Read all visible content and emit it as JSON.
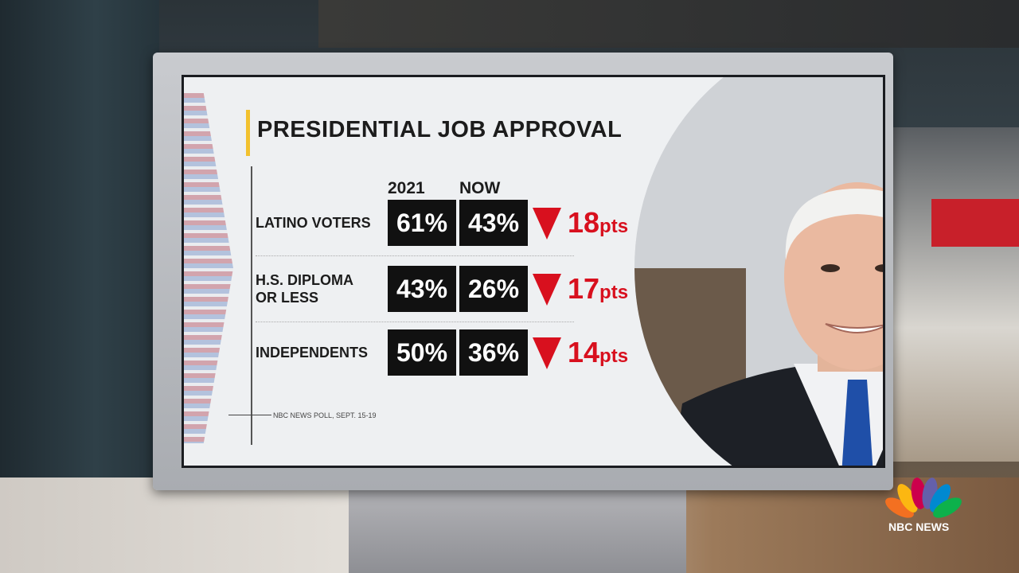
{
  "graphic": {
    "title": "PRESIDENTIAL JOB APPROVAL",
    "columns": [
      "2021",
      "NOW"
    ],
    "rows": [
      {
        "label": [
          "LATINO VOTERS"
        ],
        "values": [
          "61%",
          "43%"
        ],
        "change": "18",
        "change_unit": "pts"
      },
      {
        "label": [
          "H.S. DIPLOMA",
          "OR LESS"
        ],
        "values": [
          "43%",
          "26%"
        ],
        "change": "17",
        "change_unit": "pts"
      },
      {
        "label": [
          "INDEPENDENTS"
        ],
        "values": [
          "50%",
          "36%"
        ],
        "change": "14",
        "change_unit": "pts"
      }
    ],
    "source": "NBC NEWS POLL, SEPT. 15-19"
  },
  "logo": "NBC NEWS"
}
